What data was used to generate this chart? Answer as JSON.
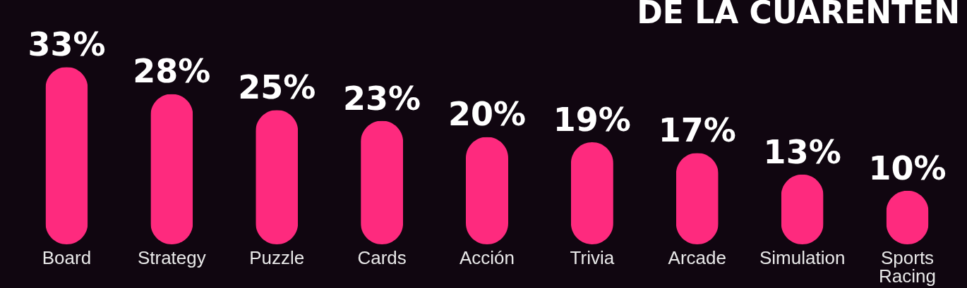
{
  "chart_data": {
    "type": "bar",
    "title": "DE LA CUARENTEN",
    "categories": [
      "Board",
      "Strategy",
      "Puzzle",
      "Cards",
      "Acción",
      "Trivia",
      "Arcade",
      "Simulation",
      "Sports Racing"
    ],
    "values": [
      33,
      28,
      25,
      23,
      20,
      19,
      17,
      13,
      10
    ],
    "value_labels": [
      "33%",
      "28%",
      "25%",
      "23%",
      "20%",
      "19%",
      "17%",
      "13%",
      "10%"
    ],
    "color": "#fe2a7e"
  }
}
